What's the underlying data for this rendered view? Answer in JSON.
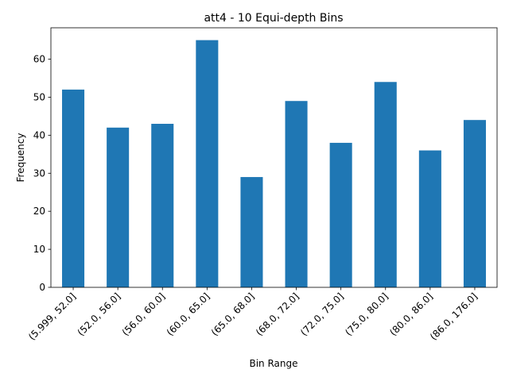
{
  "chart_data": {
    "type": "bar",
    "title": "att4 - 10 Equi-depth Bins",
    "xlabel": "Bin Range",
    "ylabel": "Frequency",
    "categories": [
      "(5.999, 52.0]",
      "(52.0, 56.0]",
      "(56.0, 60.0]",
      "(60.0, 65.0]",
      "(65.0, 68.0]",
      "(68.0, 72.0]",
      "(72.0, 75.0]",
      "(75.0, 80.0]",
      "(80.0, 86.0]",
      "(86.0, 176.0]"
    ],
    "values": [
      52,
      42,
      43,
      65,
      29,
      49,
      38,
      54,
      36,
      44
    ],
    "ylim": [
      0,
      68.25
    ],
    "yticks": [
      0,
      10,
      20,
      30,
      40,
      50,
      60
    ],
    "grid": false,
    "colors": {
      "bar": "#1f77b4"
    }
  }
}
